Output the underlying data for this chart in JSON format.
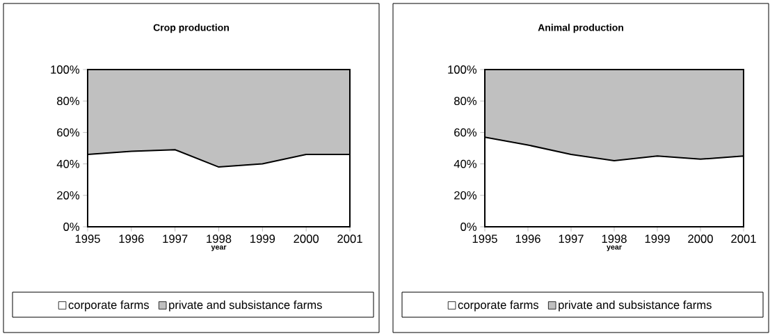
{
  "chart_data": [
    {
      "type": "area",
      "title": "Crop production",
      "xlabel": "year",
      "stacked": true,
      "legend": "bottom",
      "x": [
        1995,
        1996,
        1997,
        1998,
        1999,
        2000,
        2001
      ],
      "series": [
        {
          "name": "corporate farms",
          "color": "#ffffff",
          "values": [
            46,
            48,
            49,
            38,
            40,
            46,
            46
          ]
        },
        {
          "name": "private and subsistance farms",
          "color": "#c0c0c0",
          "values": [
            54,
            52,
            51,
            62,
            60,
            54,
            54
          ]
        }
      ],
      "xlim": [
        1995,
        2001
      ],
      "xticks": [
        1995,
        1996,
        1997,
        1998,
        1999,
        2000,
        2001
      ],
      "ylim": [
        0,
        100
      ],
      "yticks": [
        {
          "value": 0,
          "label": "0%"
        },
        {
          "value": 20,
          "label": "20%"
        },
        {
          "value": 40,
          "label": "40%"
        },
        {
          "value": 60,
          "label": "60%"
        },
        {
          "value": 80,
          "label": "80%"
        },
        {
          "value": 100,
          "label": "100%"
        }
      ]
    },
    {
      "type": "area",
      "title": "Animal production",
      "xlabel": "year",
      "stacked": true,
      "legend": "bottom",
      "x": [
        1995,
        1996,
        1997,
        1998,
        1999,
        2000,
        2001
      ],
      "series": [
        {
          "name": "corporate farms",
          "color": "#ffffff",
          "values": [
            57,
            52,
            46,
            42,
            45,
            43,
            45
          ]
        },
        {
          "name": "private and subsistance farms",
          "color": "#c0c0c0",
          "values": [
            43,
            48,
            54,
            58,
            55,
            57,
            55
          ]
        }
      ],
      "xlim": [
        1995,
        2001
      ],
      "xticks": [
        1995,
        1996,
        1997,
        1998,
        1999,
        2000,
        2001
      ],
      "ylim": [
        0,
        100
      ],
      "yticks": [
        {
          "value": 0,
          "label": "0%"
        },
        {
          "value": 20,
          "label": "20%"
        },
        {
          "value": 40,
          "label": "40%"
        },
        {
          "value": 60,
          "label": "60%"
        },
        {
          "value": 80,
          "label": "80%"
        },
        {
          "value": 100,
          "label": "100%"
        }
      ]
    }
  ]
}
